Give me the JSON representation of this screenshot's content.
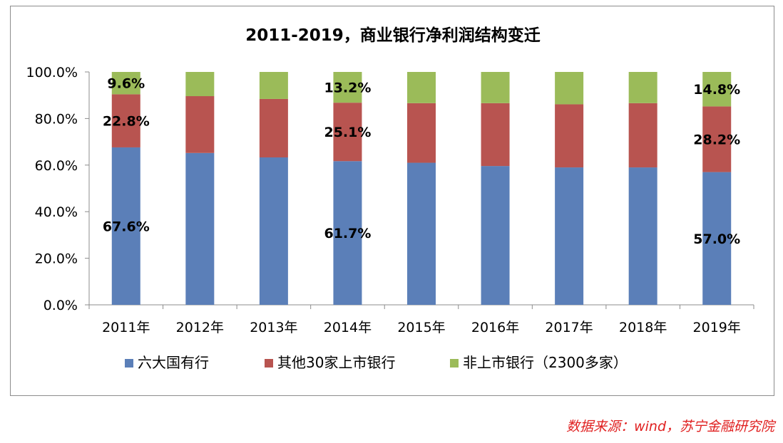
{
  "chart_data": {
    "type": "bar",
    "stacked": true,
    "title": "2011-2019，商业银行净利润结构变迁",
    "categories": [
      "2011年",
      "2012年",
      "2013年",
      "2014年",
      "2015年",
      "2016年",
      "2017年",
      "2018年",
      "2019年"
    ],
    "ylim": [
      0,
      100
    ],
    "yticks": [
      "0.0%",
      "20.0%",
      "40.0%",
      "60.0%",
      "80.0%",
      "100.0%"
    ],
    "series": [
      {
        "name": "六大国有行",
        "color": "#5b7fb8",
        "values": [
          67.6,
          65.2,
          63.3,
          61.7,
          61.0,
          59.6,
          59.0,
          59.0,
          57.0
        ]
      },
      {
        "name": "其他30家上市银行",
        "color": "#b85450",
        "values": [
          22.8,
          24.4,
          25.1,
          25.1,
          25.6,
          27.0,
          27.1,
          27.6,
          28.2
        ]
      },
      {
        "name": "非上市银行（2300多家）",
        "color": "#9bbb59",
        "values": [
          9.6,
          10.4,
          11.6,
          13.2,
          13.4,
          13.4,
          13.9,
          13.4,
          14.8
        ]
      }
    ],
    "data_labels": [
      {
        "text": "67.6%",
        "series": 0,
        "category": 0
      },
      {
        "text": "22.8%",
        "series": 1,
        "category": 0
      },
      {
        "text": "9.6%",
        "series": 2,
        "category": 0
      },
      {
        "text": "61.7%",
        "series": 0,
        "category": 3
      },
      {
        "text": "25.1%",
        "series": 1,
        "category": 3
      },
      {
        "text": "13.2%",
        "series": 2,
        "category": 3
      },
      {
        "text": "57.0%",
        "series": 0,
        "category": 8
      },
      {
        "text": "28.2%",
        "series": 1,
        "category": 8
      },
      {
        "text": "14.8%",
        "series": 2,
        "category": 8
      }
    ],
    "legend_position": "bottom",
    "grid": false
  },
  "source": "数据来源：wind，苏宁金融研究院"
}
